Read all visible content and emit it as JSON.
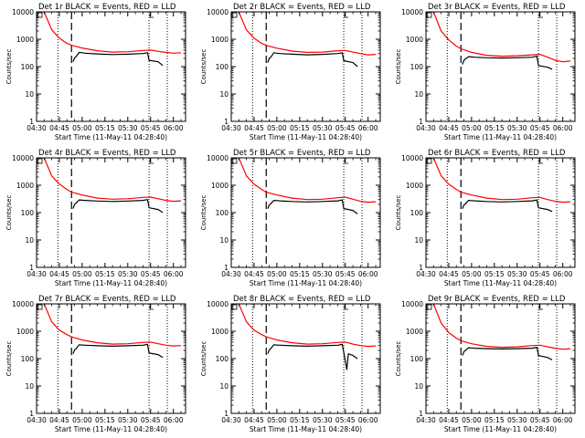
{
  "colors": {
    "background": "#ffffff",
    "events": "#000000",
    "lld": "#ff0000",
    "axis": "#000000"
  },
  "common": {
    "xlabel": "Start Time (11-May-11 04:28:40)",
    "ylabel": "Counts/sec",
    "ytick_labels": [
      "1",
      "10",
      "100",
      "1000",
      "10000"
    ],
    "yscale": "log",
    "ylim": [
      1,
      10000
    ]
  },
  "chart_data": [
    {
      "type": "line",
      "title": "Det 1r BLACK = Events, RED = LLD",
      "xlim": [
        "04:30",
        "06:08"
      ],
      "xtick_labels": [
        "04:30",
        "04:45",
        "05:00",
        "05:15",
        "05:30",
        "05:45",
        "06:00"
      ],
      "vlines_dotted": [
        "04:44",
        "05:44",
        "05:56"
      ],
      "vlines_dashed": [
        "04:53"
      ],
      "series": [
        {
          "name": "LLD",
          "color": "#ff0000",
          "x": [
            "04:35",
            "04:40",
            "04:45",
            "04:50",
            "04:53",
            "05:00",
            "05:10",
            "05:20",
            "05:30",
            "05:40",
            "05:45",
            "05:50",
            "05:55",
            "06:00",
            "06:05"
          ],
          "y": [
            10000,
            2200,
            1100,
            700,
            600,
            480,
            380,
            340,
            350,
            390,
            400,
            360,
            330,
            310,
            320
          ]
        },
        {
          "name": "Events",
          "color": "#000000",
          "x": [
            "04:54",
            "04:55",
            "04:56",
            "04:58",
            "05:00",
            "05:02",
            "05:10",
            "05:20",
            "05:30",
            "05:40",
            "05:43",
            "05:44",
            "05:50",
            "05:53"
          ],
          "y": [
            150,
            210,
            230,
            330,
            320,
            310,
            290,
            275,
            285,
            300,
            320,
            170,
            150,
            110
          ]
        }
      ]
    },
    {
      "type": "line",
      "title": "Det 2r BLACK = Events, RED = LLD",
      "xlim": [
        "04:30",
        "06:08"
      ],
      "xtick_labels": [
        "04:30",
        "04:45",
        "05:00",
        "05:15",
        "05:30",
        "05:45",
        "06:00"
      ],
      "vlines_dotted": [
        "04:44",
        "05:44",
        "05:56"
      ],
      "vlines_dashed": [
        "04:53"
      ],
      "series": [
        {
          "name": "LLD",
          "color": "#ff0000",
          "x": [
            "04:35",
            "04:40",
            "04:45",
            "04:50",
            "04:53",
            "05:00",
            "05:10",
            "05:20",
            "05:30",
            "05:40",
            "05:45",
            "05:50",
            "05:55",
            "06:00",
            "06:05"
          ],
          "y": [
            10000,
            2200,
            1100,
            700,
            600,
            470,
            370,
            330,
            340,
            380,
            390,
            340,
            300,
            270,
            280
          ]
        },
        {
          "name": "Events",
          "color": "#000000",
          "x": [
            "04:54",
            "04:55",
            "04:56",
            "04:58",
            "05:00",
            "05:02",
            "05:10",
            "05:20",
            "05:30",
            "05:40",
            "05:43",
            "05:44",
            "05:50",
            "05:53"
          ],
          "y": [
            140,
            200,
            220,
            320,
            310,
            300,
            285,
            270,
            280,
            300,
            320,
            165,
            140,
            100
          ]
        }
      ]
    },
    {
      "type": "line",
      "title": "Det 3r BLACK = Events, RED = LLD",
      "xlim": [
        "04:30",
        "06:08"
      ],
      "xtick_labels": [
        "04:30",
        "04:45",
        "05:00",
        "05:15",
        "05:30",
        "05:45",
        "06:00"
      ],
      "vlines_dotted": [
        "04:44",
        "05:44",
        "05:56"
      ],
      "vlines_dashed": [
        "04:53"
      ],
      "series": [
        {
          "name": "LLD",
          "color": "#ff0000",
          "x": [
            "04:35",
            "04:40",
            "04:45",
            "04:50",
            "04:53",
            "05:00",
            "05:10",
            "05:20",
            "05:30",
            "05:40",
            "05:45",
            "05:50",
            "05:55",
            "06:00",
            "06:05"
          ],
          "y": [
            10000,
            2000,
            950,
            560,
            450,
            330,
            260,
            240,
            250,
            270,
            280,
            220,
            170,
            150,
            160
          ]
        },
        {
          "name": "Events",
          "color": "#000000",
          "x": [
            "04:54",
            "04:55",
            "04:56",
            "04:58",
            "05:00",
            "05:02",
            "05:10",
            "05:20",
            "05:30",
            "05:40",
            "05:43",
            "05:44",
            "05:50",
            "05:53"
          ],
          "y": [
            120,
            170,
            190,
            230,
            225,
            220,
            210,
            205,
            210,
            220,
            240,
            110,
            95,
            80
          ]
        }
      ]
    },
    {
      "type": "line",
      "title": "Det 4r BLACK = Events, RED = LLD",
      "xlim": [
        "04:30",
        "06:08"
      ],
      "xtick_labels": [
        "04:30",
        "04:45",
        "05:00",
        "05:15",
        "05:30",
        "05:45",
        "06:00"
      ],
      "vlines_dotted": [
        "04:44",
        "05:44",
        "05:56"
      ],
      "vlines_dashed": [
        "04:53"
      ],
      "series": [
        {
          "name": "LLD",
          "color": "#ff0000",
          "x": [
            "04:35",
            "04:40",
            "04:45",
            "04:50",
            "04:53",
            "05:00",
            "05:10",
            "05:20",
            "05:30",
            "05:40",
            "05:45",
            "05:50",
            "05:55",
            "06:00",
            "06:05"
          ],
          "y": [
            10000,
            2200,
            1100,
            700,
            560,
            440,
            340,
            310,
            320,
            360,
            370,
            320,
            280,
            260,
            270
          ]
        },
        {
          "name": "Events",
          "color": "#000000",
          "x": [
            "04:54",
            "04:55",
            "04:56",
            "04:58",
            "05:00",
            "05:02",
            "05:10",
            "05:20",
            "05:30",
            "05:40",
            "05:43",
            "05:44",
            "05:50",
            "05:53"
          ],
          "y": [
            140,
            200,
            220,
            290,
            285,
            280,
            265,
            255,
            265,
            280,
            300,
            150,
            130,
            100
          ]
        }
      ]
    },
    {
      "type": "line",
      "title": "Det 5r BLACK = Events, RED = LLD",
      "xlim": [
        "04:30",
        "06:08"
      ],
      "xtick_labels": [
        "04:30",
        "04:45",
        "05:00",
        "05:15",
        "05:30",
        "05:45",
        "06:00"
      ],
      "vlines_dotted": [
        "04:44",
        "05:44",
        "05:56"
      ],
      "vlines_dashed": [
        "04:53"
      ],
      "series": [
        {
          "name": "LLD",
          "color": "#ff0000",
          "x": [
            "04:35",
            "04:40",
            "04:45",
            "04:50",
            "04:53",
            "05:00",
            "05:10",
            "05:20",
            "05:30",
            "05:40",
            "05:45",
            "05:50",
            "05:55",
            "06:00",
            "06:05"
          ],
          "y": [
            10000,
            2200,
            1100,
            700,
            560,
            440,
            340,
            300,
            310,
            350,
            370,
            310,
            260,
            240,
            250
          ]
        },
        {
          "name": "Events",
          "color": "#000000",
          "x": [
            "04:54",
            "04:55",
            "04:56",
            "04:58",
            "05:00",
            "05:02",
            "05:10",
            "05:20",
            "05:30",
            "05:40",
            "05:43",
            "05:44",
            "05:50",
            "05:53"
          ],
          "y": [
            140,
            190,
            210,
            280,
            275,
            270,
            255,
            245,
            255,
            270,
            290,
            140,
            120,
            90
          ]
        }
      ]
    },
    {
      "type": "line",
      "title": "Det 6r BLACK = Events, RED = LLD",
      "xlim": [
        "04:30",
        "06:08"
      ],
      "xtick_labels": [
        "04:30",
        "04:45",
        "05:00",
        "05:15",
        "05:30",
        "05:45",
        "06:00"
      ],
      "vlines_dotted": [
        "04:44",
        "05:44",
        "05:56"
      ],
      "vlines_dashed": [
        "04:53"
      ],
      "series": [
        {
          "name": "LLD",
          "color": "#ff0000",
          "x": [
            "04:35",
            "04:40",
            "04:45",
            "04:50",
            "04:53",
            "05:00",
            "05:10",
            "05:20",
            "05:30",
            "05:40",
            "05:45",
            "05:50",
            "05:55",
            "06:00",
            "06:05"
          ],
          "y": [
            10000,
            2200,
            1100,
            700,
            560,
            440,
            340,
            300,
            310,
            350,
            360,
            300,
            260,
            240,
            250
          ]
        },
        {
          "name": "Events",
          "color": "#000000",
          "x": [
            "04:54",
            "04:55",
            "04:56",
            "04:58",
            "05:00",
            "05:02",
            "05:10",
            "05:20",
            "05:30",
            "05:40",
            "05:43",
            "05:44",
            "05:50",
            "05:53"
          ],
          "y": [
            140,
            190,
            210,
            280,
            275,
            270,
            255,
            245,
            255,
            270,
            290,
            150,
            130,
            110
          ]
        }
      ]
    },
    {
      "type": "line",
      "title": "Det 7r BLACK = Events, RED = LLD",
      "xlim": [
        "04:30",
        "06:08"
      ],
      "xtick_labels": [
        "04:30",
        "04:45",
        "05:00",
        "05:15",
        "05:30",
        "05:45",
        "06:00"
      ],
      "vlines_dotted": [
        "04:44",
        "05:44",
        "05:56"
      ],
      "vlines_dashed": [
        "04:53"
      ],
      "series": [
        {
          "name": "LLD",
          "color": "#ff0000",
          "x": [
            "04:35",
            "04:40",
            "04:45",
            "04:50",
            "04:53",
            "05:00",
            "05:10",
            "05:20",
            "05:30",
            "05:40",
            "05:45",
            "05:50",
            "05:55",
            "06:00",
            "06:05"
          ],
          "y": [
            10000,
            2200,
            1100,
            750,
            620,
            480,
            380,
            340,
            350,
            390,
            400,
            350,
            310,
            290,
            300
          ]
        },
        {
          "name": "Events",
          "color": "#000000",
          "x": [
            "04:54",
            "04:55",
            "04:56",
            "04:58",
            "05:00",
            "05:02",
            "05:10",
            "05:20",
            "05:30",
            "05:40",
            "05:43",
            "05:44",
            "05:50",
            "05:53"
          ],
          "y": [
            150,
            210,
            230,
            320,
            315,
            310,
            295,
            285,
            295,
            310,
            330,
            160,
            140,
            110
          ]
        }
      ]
    },
    {
      "type": "line",
      "title": "Det 8r BLACK = Events, RED = LLD",
      "xlim": [
        "04:30",
        "06:08"
      ],
      "xtick_labels": [
        "04:30",
        "04:45",
        "05:00",
        "05:15",
        "05:30",
        "05:45",
        "06:00"
      ],
      "vlines_dotted": [
        "04:44",
        "05:44",
        "05:56"
      ],
      "vlines_dashed": [
        "04:53"
      ],
      "series": [
        {
          "name": "LLD",
          "color": "#ff0000",
          "x": [
            "04:35",
            "04:40",
            "04:45",
            "04:50",
            "04:53",
            "05:00",
            "05:10",
            "05:20",
            "05:30",
            "05:40",
            "05:45",
            "05:50",
            "05:55",
            "06:00",
            "06:05"
          ],
          "y": [
            10000,
            2200,
            1100,
            750,
            620,
            480,
            380,
            340,
            350,
            390,
            400,
            340,
            300,
            280,
            290
          ]
        },
        {
          "name": "Events",
          "color": "#000000",
          "x": [
            "04:54",
            "04:55",
            "04:56",
            "04:58",
            "05:00",
            "05:02",
            "05:10",
            "05:20",
            "05:30",
            "05:40",
            "05:43",
            "05:44",
            "05:46",
            "05:47",
            "05:50",
            "05:53"
          ],
          "y": [
            150,
            210,
            230,
            320,
            315,
            310,
            295,
            285,
            295,
            310,
            330,
            170,
            40,
            150,
            130,
            100
          ]
        }
      ]
    },
    {
      "type": "line",
      "title": "Det 9r BLACK = Events, RED = LLD",
      "xlim": [
        "04:30",
        "06:08"
      ],
      "xtick_labels": [
        "04:30",
        "04:45",
        "05:00",
        "05:15",
        "05:30",
        "05:45",
        "06:00"
      ],
      "vlines_dotted": [
        "04:44",
        "05:44",
        "05:56"
      ],
      "vlines_dashed": [
        "04:53"
      ],
      "series": [
        {
          "name": "LLD",
          "color": "#ff0000",
          "x": [
            "04:35",
            "04:40",
            "04:45",
            "04:50",
            "04:53",
            "05:00",
            "05:10",
            "05:20",
            "05:30",
            "05:40",
            "05:45",
            "05:50",
            "05:55",
            "06:00",
            "06:05"
          ],
          "y": [
            10000,
            2000,
            900,
            560,
            450,
            350,
            280,
            260,
            270,
            300,
            310,
            270,
            240,
            220,
            230
          ]
        },
        {
          "name": "Events",
          "color": "#000000",
          "x": [
            "04:54",
            "04:55",
            "04:56",
            "04:58",
            "05:00",
            "05:02",
            "05:10",
            "05:20",
            "05:30",
            "05:40",
            "05:43",
            "05:44",
            "05:50",
            "05:53"
          ],
          "y": [
            130,
            180,
            200,
            250,
            245,
            240,
            230,
            225,
            230,
            240,
            260,
            130,
            110,
            90
          ]
        }
      ]
    }
  ]
}
